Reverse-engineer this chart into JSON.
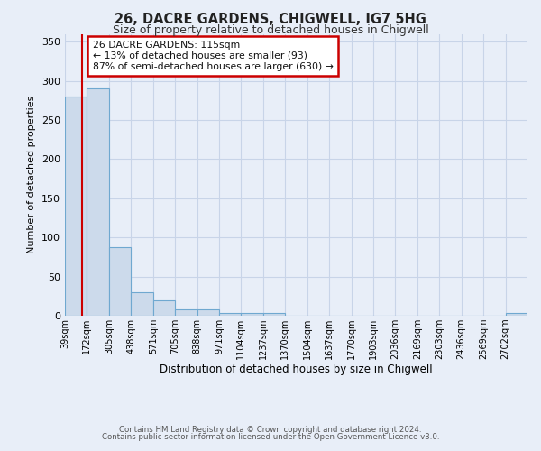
{
  "title1": "26, DACRE GARDENS, CHIGWELL, IG7 5HG",
  "title2": "Size of property relative to detached houses in Chigwell",
  "xlabel": "Distribution of detached houses by size in Chigwell",
  "ylabel": "Number of detached properties",
  "categories": [
    "39sqm",
    "172sqm",
    "305sqm",
    "438sqm",
    "571sqm",
    "705sqm",
    "838sqm",
    "971sqm",
    "1104sqm",
    "1237sqm",
    "1370sqm",
    "1504sqm",
    "1637sqm",
    "1770sqm",
    "1903sqm",
    "2036sqm",
    "2169sqm",
    "2303sqm",
    "2436sqm",
    "2569sqm",
    "2702sqm"
  ],
  "values": [
    280,
    290,
    88,
    30,
    20,
    8,
    8,
    4,
    4,
    4,
    0,
    0,
    0,
    0,
    0,
    0,
    0,
    0,
    0,
    0,
    4
  ],
  "bar_color": "#ccdaeb",
  "bar_edge_color": "#6fa8d0",
  "red_line_x": 0.77,
  "annotation_text_line1": "26 DACRE GARDENS: 115sqm",
  "annotation_text_line2": "← 13% of detached houses are smaller (93)",
  "annotation_text_line3": "87% of semi-detached houses are larger (630) →",
  "grid_color": "#c8d4e8",
  "background_color": "#e8eef8",
  "plot_bg_color": "#e8eef8",
  "ylim": [
    0,
    360
  ],
  "yticks": [
    0,
    50,
    100,
    150,
    200,
    250,
    300,
    350
  ],
  "footer1": "Contains HM Land Registry data © Crown copyright and database right 2024.",
  "footer2": "Contains public sector information licensed under the Open Government Licence v3.0."
}
